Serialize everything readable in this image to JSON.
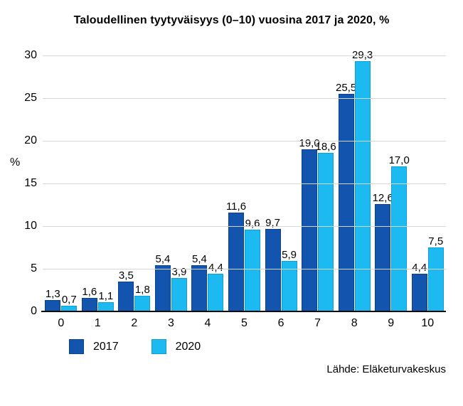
{
  "title": "Taloudellinen tyytyväisyys (0–10) vuosina 2017 ja 2020, %",
  "source": "Lähde: Eläketurvakeskus",
  "chart_data": {
    "type": "bar",
    "title": "Taloudellinen tyytyväisyys (0–10) vuosina 2017 ja 2020, %",
    "categories": [
      "0",
      "1",
      "2",
      "3",
      "4",
      "5",
      "6",
      "7",
      "8",
      "9",
      "10"
    ],
    "series": [
      {
        "name": "2017",
        "color": "#1254ae",
        "border_color": "#0b4191",
        "values": [
          1.3,
          1.6,
          3.5,
          5.4,
          5.4,
          11.6,
          9.7,
          19.0,
          25.5,
          12.6,
          4.4
        ],
        "labels": [
          "1,3",
          "1,6",
          "3,5",
          "5,4",
          "5,4",
          "11,6",
          "9,7",
          "19,0",
          "25,5",
          "12,6",
          "4,4"
        ]
      },
      {
        "name": "2020",
        "color": "#1db9f1",
        "border_color": "#0d9fd8",
        "values": [
          0.7,
          1.1,
          1.8,
          3.9,
          4.4,
          9.6,
          5.9,
          18.6,
          29.3,
          17.0,
          7.5
        ],
        "labels": [
          "0,7",
          "1,1",
          "1,8",
          "3,9",
          "4,4",
          "9,6",
          "5,9",
          "18,6",
          "29,3",
          "17,0",
          "7,5"
        ]
      }
    ],
    "xlabel": "",
    "ylabel": "%",
    "ylim": [
      0,
      30
    ],
    "yticks": [
      0,
      5,
      10,
      15,
      20,
      25,
      30
    ],
    "grid": true,
    "gridline_color": "#d6d6d6",
    "legend_position": "bottom-left"
  }
}
